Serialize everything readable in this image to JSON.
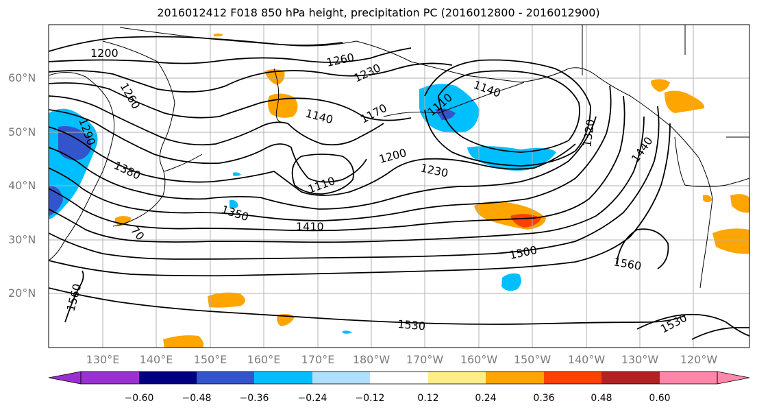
{
  "title": "2016012412 F018 850 hPa height, precipitation PC (2016012800 - 2016012900)",
  "lat_labels": [
    "60°N",
    "50°N",
    "40°N",
    "30°N",
    "20°N"
  ],
  "lon_labels": [
    "130°E",
    "140°E",
    "150°E",
    "160°E",
    "170°E",
    "180°W",
    "170°W",
    "160°W",
    "150°W",
    "140°W",
    "130°W",
    "120°W"
  ],
  "contour_labels": [
    "1200",
    "1260",
    "1230",
    "1140",
    "1170",
    "1110",
    "1140",
    "1290",
    "1260",
    "1380",
    "1110",
    "1200",
    "1230",
    "1320",
    "1440",
    "1350",
    "1410",
    "70",
    "1500",
    "1560",
    "1560",
    "1530",
    "1530"
  ],
  "colorbar": {
    "colors": [
      "#9b30d0",
      "#000080",
      "#3355cc",
      "#00bfff",
      "#b0e0ff",
      "#ffffff",
      "#ffee88",
      "#ffa500",
      "#ff4000",
      "#b22222",
      "#ff88aa"
    ],
    "tick_labels": [
      "−0.60",
      "−0.48",
      "−0.36",
      "−0.24",
      "−0.12",
      "0.12",
      "0.24",
      "0.36",
      "0.48",
      "0.60"
    ]
  }
}
